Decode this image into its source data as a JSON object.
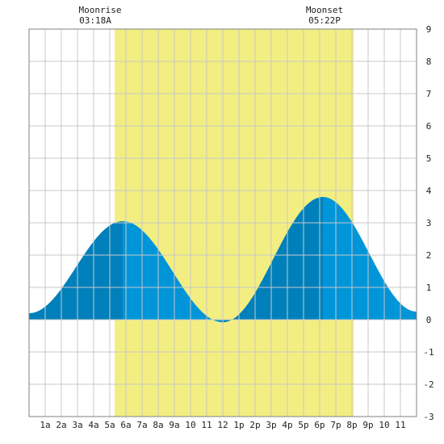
{
  "chart_data": {
    "type": "area",
    "title": "",
    "xlabel": "",
    "ylabel": "",
    "ylim": [
      -3,
      9
    ],
    "xlim": [
      0,
      24
    ],
    "y_ticks": [
      -3,
      -2,
      -1,
      0,
      1,
      2,
      3,
      4,
      5,
      6,
      7,
      8,
      9
    ],
    "x_tick_labels": [
      "1a",
      "2a",
      "3a",
      "4a",
      "5a",
      "6a",
      "7a",
      "8a",
      "9a",
      "10",
      "11",
      "12",
      "1p",
      "2p",
      "3p",
      "4p",
      "5p",
      "6p",
      "7p",
      "8p",
      "9p",
      "10",
      "11"
    ],
    "grid": true,
    "moonrise": {
      "label": "Moonrise",
      "time": "03:18A"
    },
    "moonset": {
      "label": "Moonset",
      "time": "05:22P"
    },
    "highlight_hours": [
      5.3,
      20.1
    ],
    "tide_extrema": [
      {
        "hour": 0.0,
        "height": 0.2
      },
      {
        "hour": 5.8,
        "height": 3.05
      },
      {
        "hour": 12.0,
        "height": -0.08
      },
      {
        "hour": 18.2,
        "height": 3.8
      },
      {
        "hour": 24.0,
        "height": 0.25
      }
    ],
    "colors": {
      "highlight": "#f2ee82",
      "rising": "#0080bb",
      "falling": "#0095d8",
      "grid": "#c8c8c8",
      "frame": "#808080"
    }
  }
}
